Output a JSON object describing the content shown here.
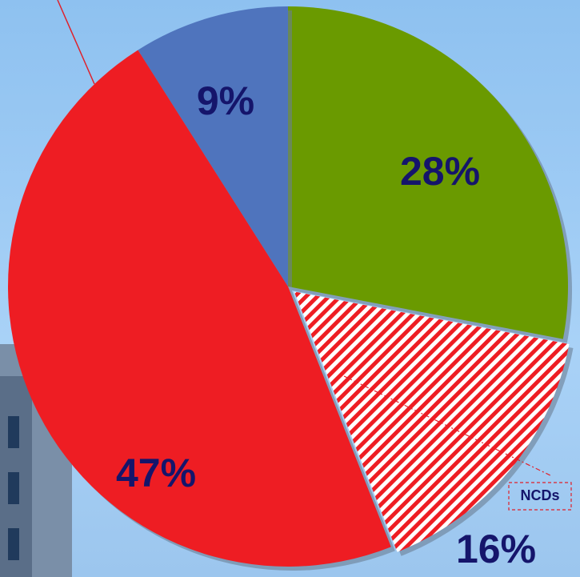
{
  "chart_data": {
    "type": "pie",
    "categories": [
      null,
      "NCDs",
      null,
      null
    ],
    "values": [
      28,
      16,
      47,
      9
    ],
    "value_labels": [
      "28%",
      "16%",
      "47%",
      "9%"
    ],
    "colors": [
      "#6a9a00",
      "#ee1d23",
      "#ee1d23",
      "#4f74bd"
    ],
    "hatched": [
      false,
      true,
      false,
      false
    ],
    "start_angle": 0,
    "direction": "clockwise"
  }
}
